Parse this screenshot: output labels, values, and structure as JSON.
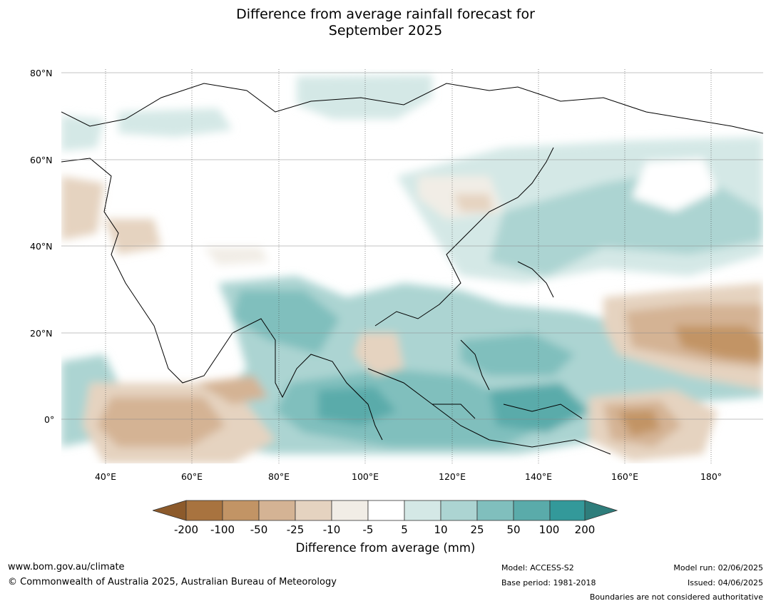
{
  "title_line1": "Difference from average rainfall forecast for",
  "title_line2": "September 2025",
  "lat_labels": [
    "80°N",
    "60°N",
    "40°N",
    "20°N",
    "0°"
  ],
  "lon_labels": [
    "40°E",
    "60°E",
    "80°E",
    "100°E",
    "120°E",
    "140°E",
    "160°E",
    "180°"
  ],
  "colorbar": {
    "title": "Difference from average (mm)",
    "ticks": [
      "-200",
      "-100",
      "-50",
      "-25",
      "-10",
      "-5",
      "5",
      "10",
      "25",
      "50",
      "100",
      "200"
    ],
    "colors": [
      "#8c5a2b",
      "#a8733f",
      "#c29465",
      "#d4b394",
      "#e5d3c0",
      "#f1ede6",
      "#ffffff",
      "#d4e8e6",
      "#acd4d2",
      "#80bfbd",
      "#5aabaa",
      "#33999a",
      "#2e7d7b"
    ]
  },
  "footer": {
    "url": "www.bom.gov.au/climate",
    "copyright": "© Commonwealth of Australia 2025, Australian Bureau of Meteorology",
    "model": "Model: ACCESS-S2",
    "base_period": "Base period: 1981-2018",
    "model_run": "Model run: 02/06/2025",
    "issued": "Issued: 04/06/2025",
    "boundaries": "Boundaries are not considered authoritative"
  }
}
